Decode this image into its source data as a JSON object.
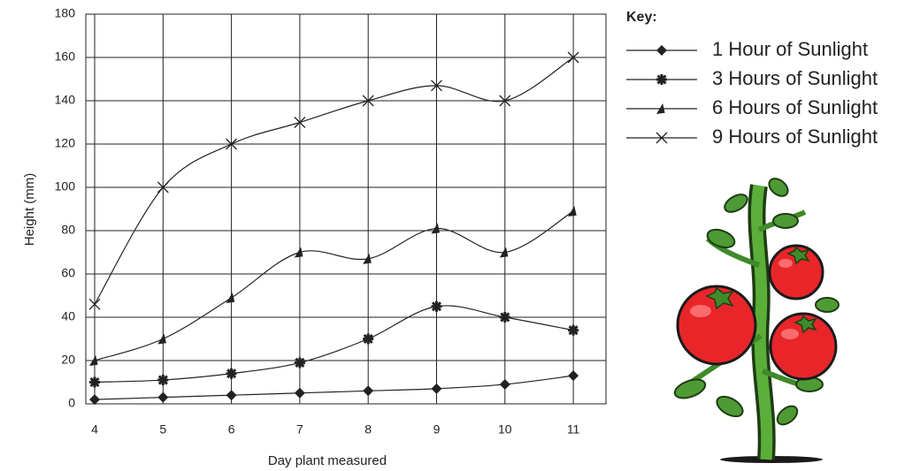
{
  "chart_data": {
    "type": "line",
    "x_label": "Day plant measured",
    "y_label": "Height (mm)",
    "legend_title": "Key:",
    "categories": [
      "4",
      "5",
      "6",
      "7",
      "8",
      "9",
      "10",
      "11"
    ],
    "series": [
      {
        "name": "1 Hour of Sunlight",
        "color": "#222222",
        "marker": "diamond",
        "values": [
          2,
          3,
          4,
          5,
          6,
          7,
          9,
          13
        ]
      },
      {
        "name": "3 Hours of Sunlight",
        "color": "#222222",
        "marker": "star",
        "values": [
          10,
          11,
          14,
          19,
          30,
          45,
          40,
          34
        ]
      },
      {
        "name": "6 Hours of Sunlight",
        "color": "#222222",
        "marker": "triangle",
        "values": [
          20,
          30,
          49,
          70,
          67,
          81,
          70,
          89
        ]
      },
      {
        "name": "9 Hours of Sunlight",
        "color": "#222222",
        "marker": "x",
        "values": [
          46,
          100,
          120,
          130,
          140,
          147,
          140,
          160
        ]
      }
    ],
    "ylim": [
      0,
      180
    ],
    "yticks": [
      0,
      20,
      40,
      60,
      80,
      100,
      120,
      140,
      160,
      180
    ],
    "grid": true,
    "smooth": true,
    "legend": "right"
  }
}
